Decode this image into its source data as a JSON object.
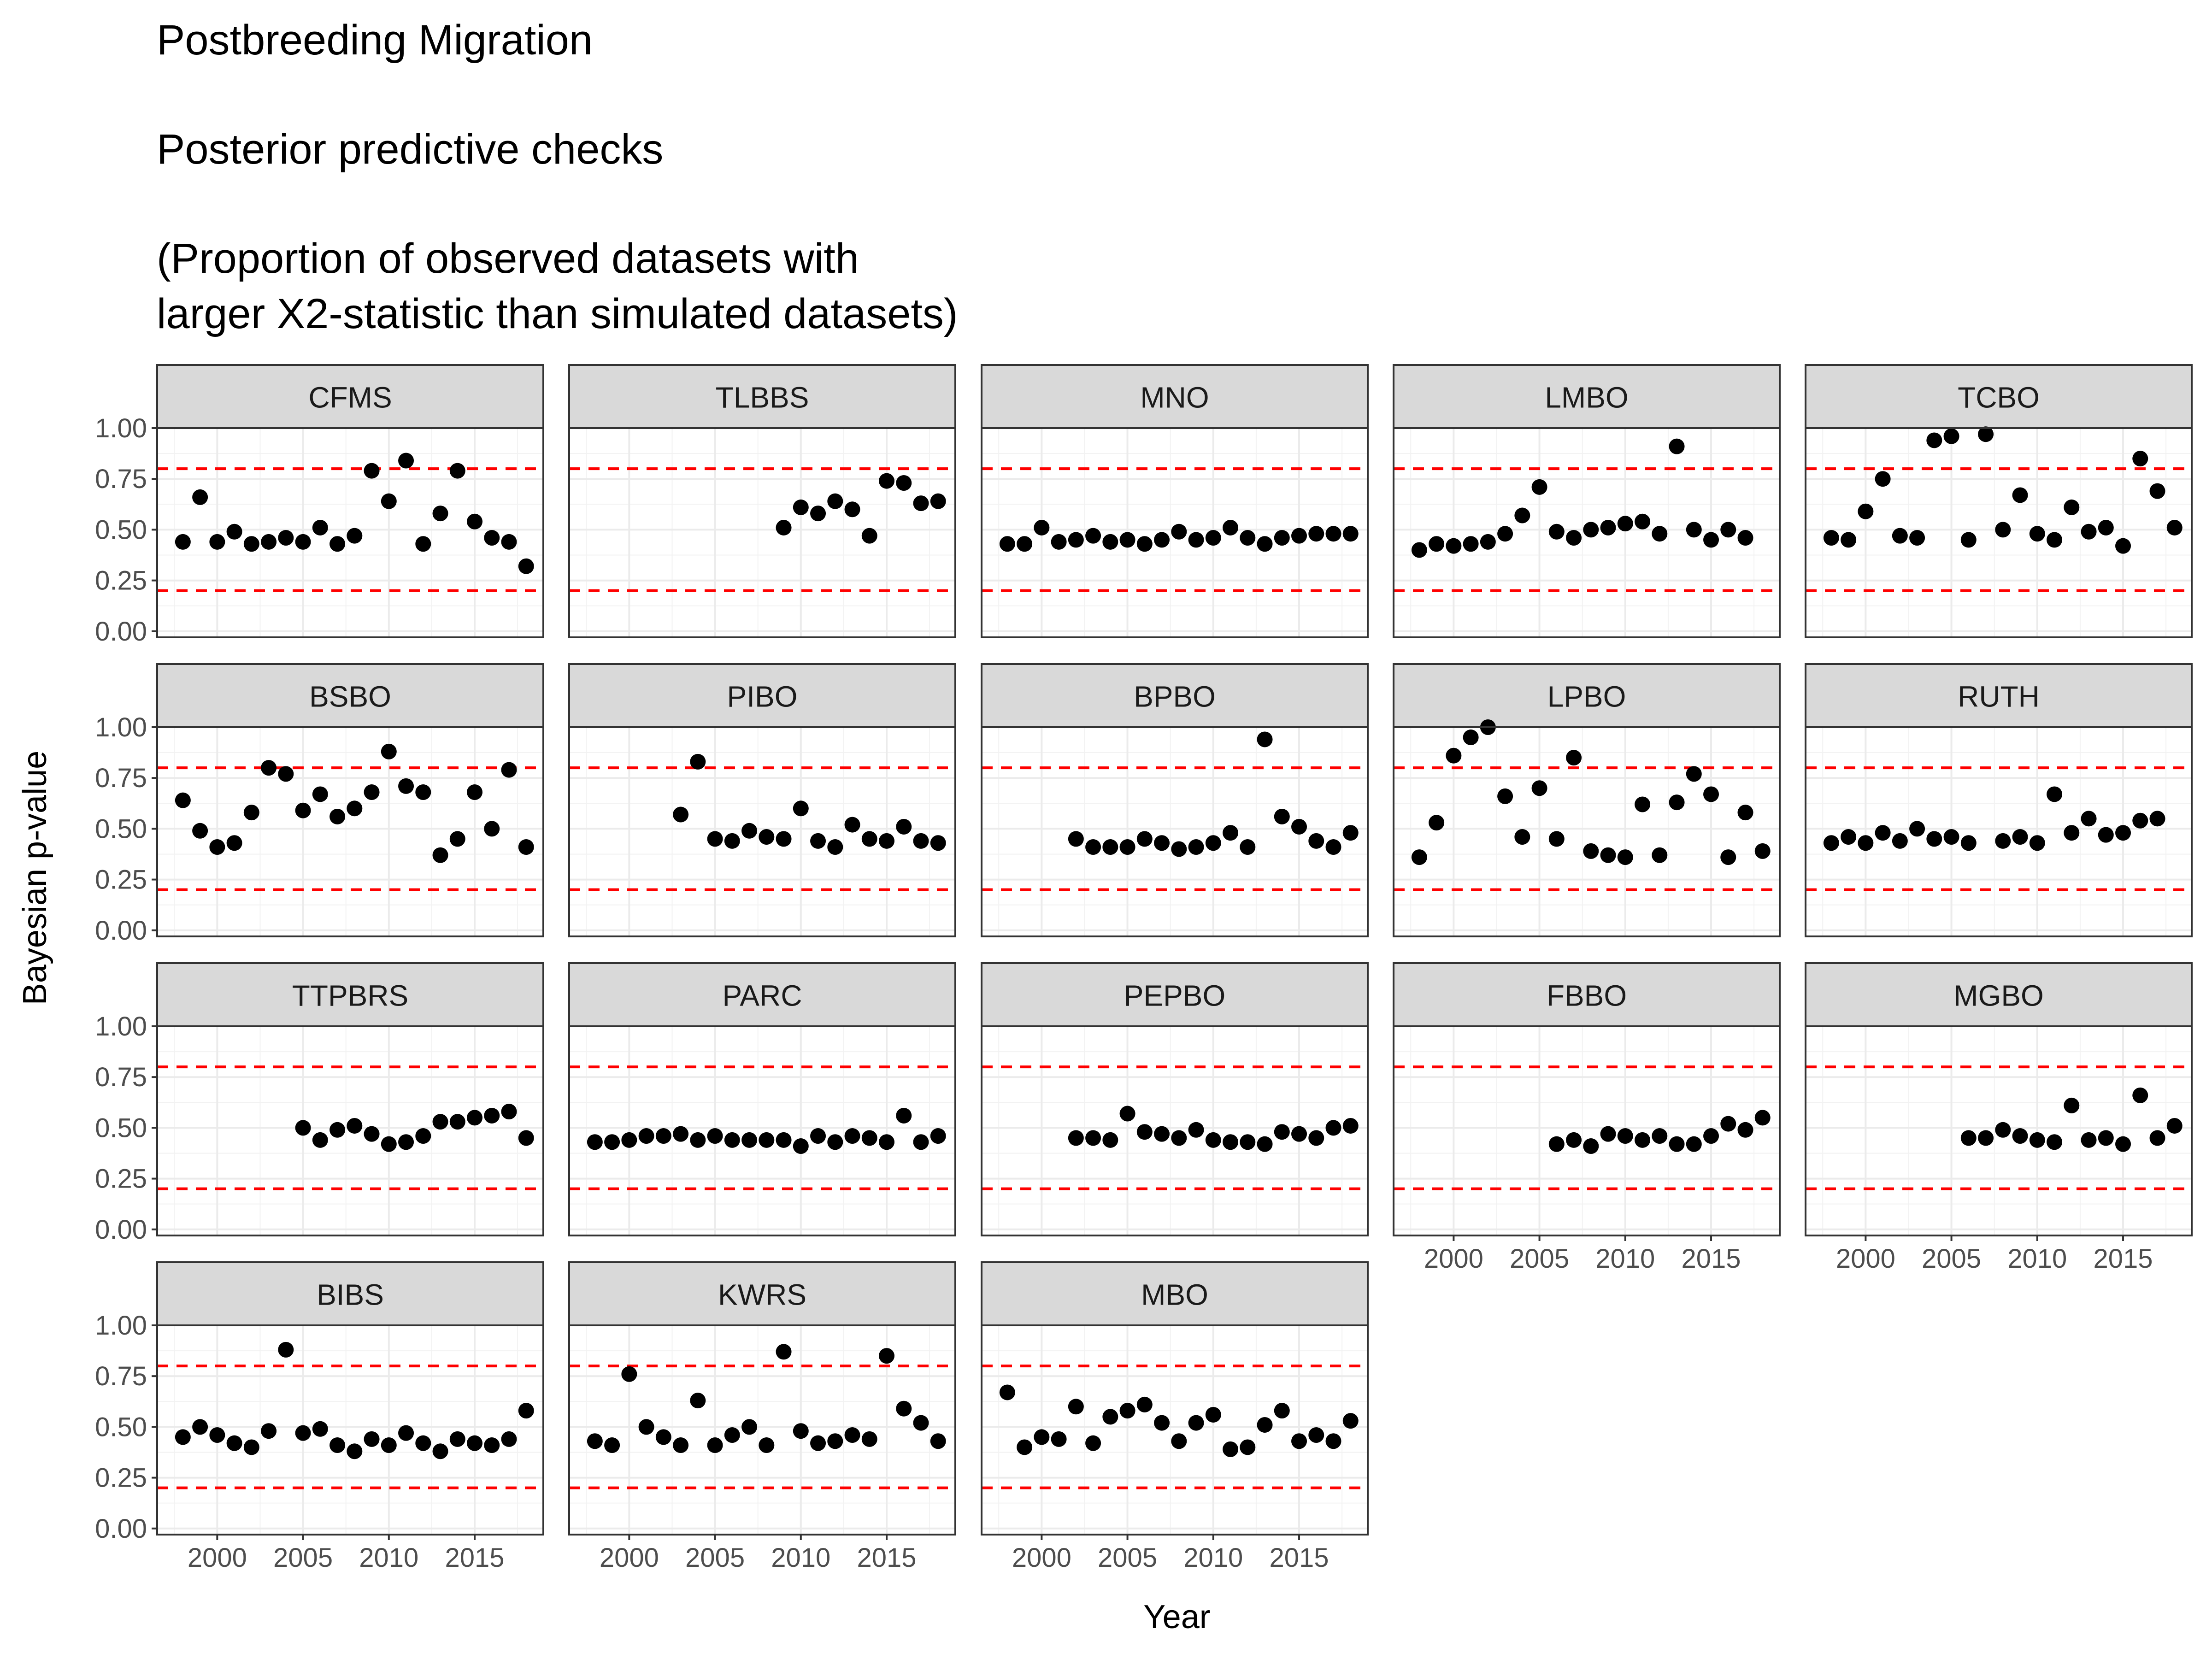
{
  "chart_data": {
    "type": "scatter",
    "title_lines": [
      "Postbreeding Migration",
      "",
      "Posterior predictive checks",
      "",
      "(Proportion of observed datasets with",
      "larger X2-statistic than simulated datasets)"
    ],
    "xlabel": "Year",
    "ylabel": "Bayesian p-value",
    "xlim": [
      1996.5,
      2019
    ],
    "ylim": [
      -0.03,
      1.0
    ],
    "x_ticks": [
      2000,
      2005,
      2010,
      2015
    ],
    "x_tick_labels": [
      "2000",
      "2005",
      "2010",
      "2015"
    ],
    "y_ticks": [
      0,
      0.25,
      0.5,
      0.75,
      1.0
    ],
    "y_tick_labels": [
      "0.00",
      "0.25",
      "0.50",
      "0.75",
      "1.00"
    ],
    "reference_lines": [
      0.2,
      0.8
    ],
    "reference_line_color": "#ff0000",
    "point_color": "#000000",
    "strip_color": "#d9d9d9",
    "grid": true,
    "panels": [
      {
        "name": "CFMS",
        "x": [
          1998,
          1999,
          2000,
          2001,
          2002,
          2003,
          2004,
          2005,
          2006,
          2007,
          2008,
          2009,
          2010,
          2011,
          2012,
          2013,
          2014,
          2015,
          2016,
          2017,
          2018
        ],
        "y": [
          0.44,
          0.66,
          0.44,
          0.49,
          0.43,
          0.44,
          0.46,
          0.44,
          0.51,
          0.43,
          0.47,
          0.79,
          0.64,
          0.84,
          0.43,
          0.58,
          0.79,
          0.54,
          0.46,
          0.44,
          0.32
        ]
      },
      {
        "name": "TLBBS",
        "x": [
          2009,
          2010,
          2011,
          2012,
          2013,
          2014,
          2015,
          2016,
          2017,
          2018
        ],
        "y": [
          0.51,
          0.61,
          0.58,
          0.64,
          0.6,
          0.47,
          0.74,
          0.73,
          0.63,
          0.64
        ]
      },
      {
        "name": "MNO",
        "x": [
          1998,
          1999,
          2000,
          2001,
          2002,
          2003,
          2004,
          2005,
          2006,
          2007,
          2008,
          2009,
          2010,
          2011,
          2012,
          2013,
          2014,
          2015,
          2016,
          2017,
          2018
        ],
        "y": [
          0.43,
          0.43,
          0.51,
          0.44,
          0.45,
          0.47,
          0.44,
          0.45,
          0.43,
          0.45,
          0.49,
          0.45,
          0.46,
          0.51,
          0.46,
          0.43,
          0.46,
          0.47,
          0.48,
          0.48,
          0.48
        ]
      },
      {
        "name": "LMBO",
        "x": [
          1998,
          1999,
          2000,
          2001,
          2002,
          2003,
          2004,
          2005,
          2006,
          2007,
          2008,
          2009,
          2010,
          2011,
          2012,
          2013,
          2014,
          2015,
          2016,
          2017
        ],
        "y": [
          0.4,
          0.43,
          0.42,
          0.43,
          0.44,
          0.48,
          0.57,
          0.71,
          0.49,
          0.46,
          0.5,
          0.51,
          0.53,
          0.54,
          0.48,
          0.91,
          0.5,
          0.45,
          0.5,
          0.46
        ]
      },
      {
        "name": "TCBO",
        "x": [
          1998,
          1999,
          2000,
          2001,
          2002,
          2003,
          2004,
          2005,
          2006,
          2007,
          2008,
          2009,
          2010,
          2011,
          2012,
          2013,
          2014,
          2015,
          2016,
          2017,
          2018
        ],
        "y": [
          0.46,
          0.45,
          0.59,
          0.75,
          0.47,
          0.46,
          0.94,
          0.96,
          0.45,
          0.97,
          0.5,
          0.67,
          0.48,
          0.45,
          0.61,
          0.49,
          0.51,
          0.42,
          0.85,
          0.69,
          0.51
        ]
      },
      {
        "name": "BSBO",
        "x": [
          1998,
          1999,
          2000,
          2001,
          2002,
          2003,
          2004,
          2005,
          2006,
          2007,
          2008,
          2009,
          2010,
          2011,
          2012,
          2013,
          2014,
          2015,
          2016,
          2017,
          2018
        ],
        "y": [
          0.64,
          0.49,
          0.41,
          0.43,
          0.58,
          0.8,
          0.77,
          0.59,
          0.67,
          0.56,
          0.6,
          0.68,
          0.88,
          0.71,
          0.68,
          0.37,
          0.45,
          0.68,
          0.5,
          0.79,
          0.41
        ]
      },
      {
        "name": "PIBO",
        "x": [
          2003,
          2004,
          2005,
          2006,
          2007,
          2008,
          2009,
          2010,
          2011,
          2012,
          2013,
          2014,
          2015,
          2016,
          2017,
          2018
        ],
        "y": [
          0.57,
          0.83,
          0.45,
          0.44,
          0.49,
          0.46,
          0.45,
          0.6,
          0.44,
          0.41,
          0.52,
          0.45,
          0.44,
          0.51,
          0.44,
          0.43
        ]
      },
      {
        "name": "BPBO",
        "x": [
          2002,
          2003,
          2004,
          2005,
          2006,
          2007,
          2008,
          2009,
          2010,
          2011,
          2012,
          2013,
          2014,
          2015,
          2016,
          2017,
          2018
        ],
        "y": [
          0.45,
          0.41,
          0.41,
          0.41,
          0.45,
          0.43,
          0.4,
          0.41,
          0.43,
          0.48,
          0.41,
          0.94,
          0.56,
          0.51,
          0.44,
          0.41,
          0.48
        ]
      },
      {
        "name": "LPBO",
        "x": [
          1998,
          1999,
          2000,
          2001,
          2002,
          2003,
          2004,
          2005,
          2006,
          2007,
          2008,
          2009,
          2010,
          2011,
          2012,
          2013,
          2014,
          2015,
          2016,
          2017,
          2018
        ],
        "y": [
          0.36,
          0.53,
          0.86,
          0.95,
          1.0,
          0.66,
          0.46,
          0.7,
          0.45,
          0.85,
          0.39,
          0.37,
          0.36,
          0.62,
          0.37,
          0.63,
          0.77,
          0.67,
          0.36,
          0.58,
          0.39
        ]
      },
      {
        "name": "RUTH",
        "x": [
          1998,
          1999,
          2000,
          2001,
          2002,
          2003,
          2004,
          2005,
          2006,
          2008,
          2009,
          2010,
          2011,
          2012,
          2013,
          2014,
          2015,
          2016,
          2017
        ],
        "y": [
          0.43,
          0.46,
          0.43,
          0.48,
          0.44,
          0.5,
          0.45,
          0.46,
          0.43,
          0.44,
          0.46,
          0.43,
          0.67,
          0.48,
          0.55,
          0.47,
          0.48,
          0.54,
          0.55
        ]
      },
      {
        "name": "TTPBRS",
        "x": [
          2005,
          2006,
          2007,
          2008,
          2009,
          2010,
          2011,
          2012,
          2013,
          2014,
          2015,
          2016,
          2017,
          2018
        ],
        "y": [
          0.5,
          0.44,
          0.49,
          0.51,
          0.47,
          0.42,
          0.43,
          0.46,
          0.53,
          0.53,
          0.55,
          0.56,
          0.58,
          0.45
        ]
      },
      {
        "name": "PARC",
        "x": [
          1998,
          1999,
          2000,
          2001,
          2002,
          2003,
          2004,
          2005,
          2006,
          2007,
          2008,
          2009,
          2010,
          2011,
          2012,
          2013,
          2014,
          2015,
          2016,
          2017,
          2018
        ],
        "y": [
          0.43,
          0.43,
          0.44,
          0.46,
          0.46,
          0.47,
          0.44,
          0.46,
          0.44,
          0.44,
          0.44,
          0.44,
          0.41,
          0.46,
          0.43,
          0.46,
          0.45,
          0.43,
          0.56,
          0.43,
          0.46
        ]
      },
      {
        "name": "PEPBO",
        "x": [
          2002,
          2003,
          2004,
          2005,
          2006,
          2007,
          2008,
          2009,
          2010,
          2011,
          2012,
          2013,
          2014,
          2015,
          2016,
          2017,
          2018
        ],
        "y": [
          0.45,
          0.45,
          0.44,
          0.57,
          0.48,
          0.47,
          0.45,
          0.49,
          0.44,
          0.43,
          0.43,
          0.42,
          0.48,
          0.47,
          0.45,
          0.5,
          0.51
        ]
      },
      {
        "name": "FBBO",
        "x": [
          2006,
          2007,
          2008,
          2009,
          2010,
          2011,
          2012,
          2013,
          2014,
          2015,
          2016,
          2017,
          2018
        ],
        "y": [
          0.42,
          0.44,
          0.41,
          0.47,
          0.46,
          0.44,
          0.46,
          0.42,
          0.42,
          0.46,
          0.52,
          0.49,
          0.55
        ]
      },
      {
        "name": "MGBO",
        "x": [
          2006,
          2007,
          2008,
          2009,
          2010,
          2011,
          2012,
          2013,
          2014,
          2015,
          2016,
          2017,
          2018
        ],
        "y": [
          0.45,
          0.45,
          0.49,
          0.46,
          0.44,
          0.43,
          0.61,
          0.44,
          0.45,
          0.42,
          0.66,
          0.45,
          0.51
        ]
      },
      {
        "name": "BIBS",
        "x": [
          1998,
          1999,
          2000,
          2001,
          2002,
          2003,
          2004,
          2005,
          2006,
          2007,
          2008,
          2009,
          2010,
          2011,
          2012,
          2013,
          2014,
          2015,
          2016,
          2017,
          2018
        ],
        "y": [
          0.45,
          0.5,
          0.46,
          0.42,
          0.4,
          0.48,
          0.88,
          0.47,
          0.49,
          0.41,
          0.38,
          0.44,
          0.41,
          0.47,
          0.42,
          0.38,
          0.44,
          0.42,
          0.41,
          0.44,
          0.58
        ]
      },
      {
        "name": "KWRS",
        "x": [
          1998,
          1999,
          2000,
          2001,
          2002,
          2003,
          2004,
          2005,
          2006,
          2007,
          2008,
          2009,
          2010,
          2011,
          2012,
          2013,
          2014,
          2015,
          2016,
          2017,
          2018
        ],
        "y": [
          0.43,
          0.41,
          0.76,
          0.5,
          0.45,
          0.41,
          0.63,
          0.41,
          0.46,
          0.5,
          0.41,
          0.87,
          0.48,
          0.42,
          0.43,
          0.46,
          0.44,
          0.85,
          0.59,
          0.52,
          0.43
        ]
      },
      {
        "name": "MBO",
        "x": [
          1998,
          1999,
          2000,
          2001,
          2002,
          2003,
          2004,
          2005,
          2006,
          2007,
          2008,
          2009,
          2010,
          2011,
          2012,
          2013,
          2014,
          2015,
          2016,
          2017,
          2018
        ],
        "y": [
          0.67,
          0.4,
          0.45,
          0.44,
          0.6,
          0.42,
          0.55,
          0.58,
          0.61,
          0.52,
          0.43,
          0.52,
          0.56,
          0.39,
          0.4,
          0.51,
          0.58,
          0.43,
          0.46,
          0.43,
          0.53
        ]
      }
    ]
  }
}
